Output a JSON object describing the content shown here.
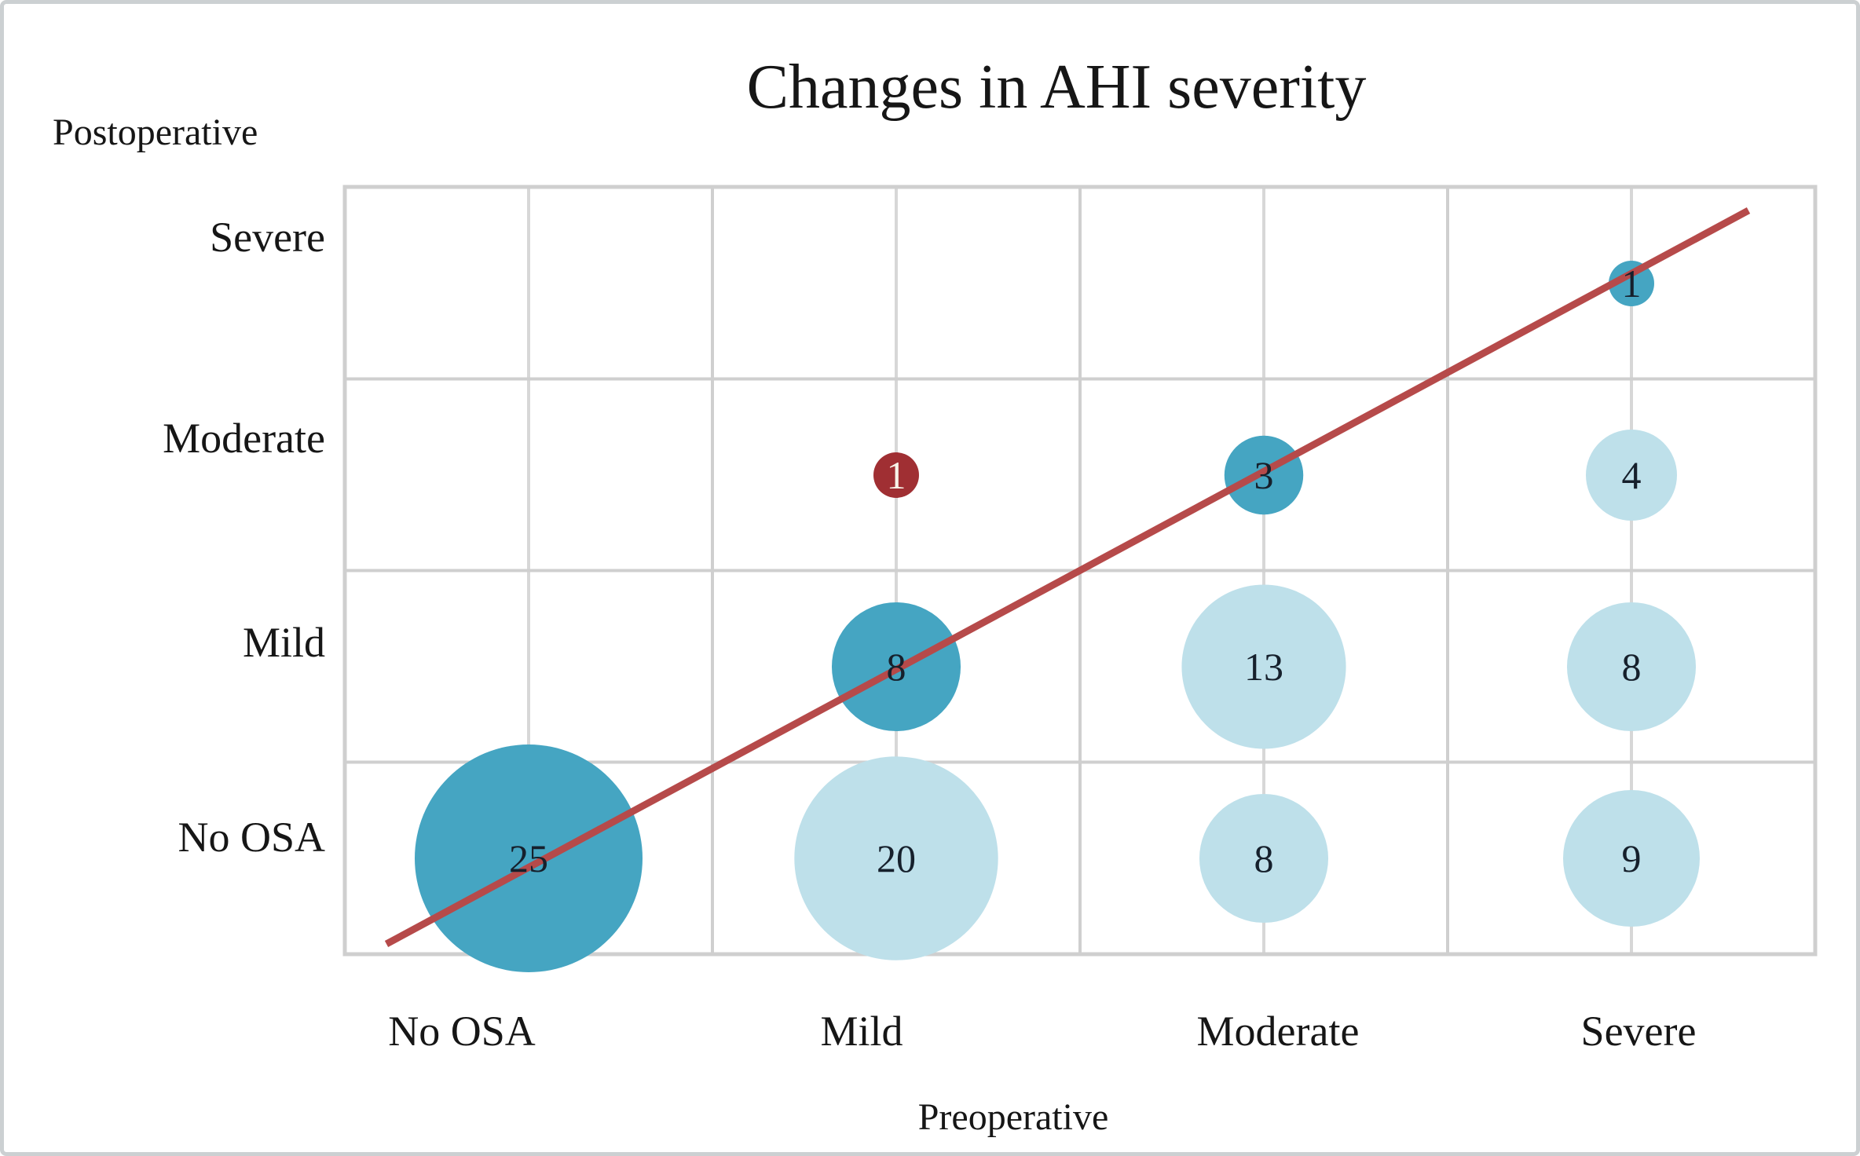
{
  "chart_data": {
    "type": "scatter",
    "subtype": "bubble-transition-matrix",
    "title": "Changes in AHI severity",
    "xlabel": "Preoperative",
    "ylabel": "Postoperative",
    "x_categories": [
      "No OSA",
      "Mild",
      "Moderate",
      "Severe"
    ],
    "y_categories_top_to_bottom": [
      "Severe",
      "Moderate",
      "Mild",
      "No OSA"
    ],
    "grid": "on",
    "legend": "none",
    "size_rule": "bubble radius proportional to sqrt(value)",
    "bubbles": [
      {
        "pre": "No OSA",
        "post": "No OSA",
        "value": 25,
        "shade": "dark"
      },
      {
        "pre": "Mild",
        "post": "No OSA",
        "value": 20,
        "shade": "light"
      },
      {
        "pre": "Mild",
        "post": "Mild",
        "value": 8,
        "shade": "dark"
      },
      {
        "pre": "Mild",
        "post": "Moderate",
        "value": 1,
        "shade": "red"
      },
      {
        "pre": "Moderate",
        "post": "No OSA",
        "value": 8,
        "shade": "light"
      },
      {
        "pre": "Moderate",
        "post": "Mild",
        "value": 13,
        "shade": "light"
      },
      {
        "pre": "Moderate",
        "post": "Moderate",
        "value": 3,
        "shade": "dark"
      },
      {
        "pre": "Severe",
        "post": "No OSA",
        "value": 9,
        "shade": "light"
      },
      {
        "pre": "Severe",
        "post": "Mild",
        "value": 8,
        "shade": "light"
      },
      {
        "pre": "Severe",
        "post": "Moderate",
        "value": 4,
        "shade": "light"
      },
      {
        "pre": "Severe",
        "post": "Severe",
        "value": 1,
        "shade": "dark"
      }
    ],
    "identity_line": {
      "present": true,
      "color": "#b64a4a",
      "description": "diagonal reference line bottom-left to top-right"
    },
    "colors": {
      "dark": "#45a5c2",
      "light": "#bee0ea",
      "red": "#a02f33",
      "number_dark": "#16202c",
      "number_light": "#f7f3e8",
      "grid_boundary": "#cfcfcf",
      "grid_center": "#d7d7d7",
      "text": "#161616"
    }
  }
}
